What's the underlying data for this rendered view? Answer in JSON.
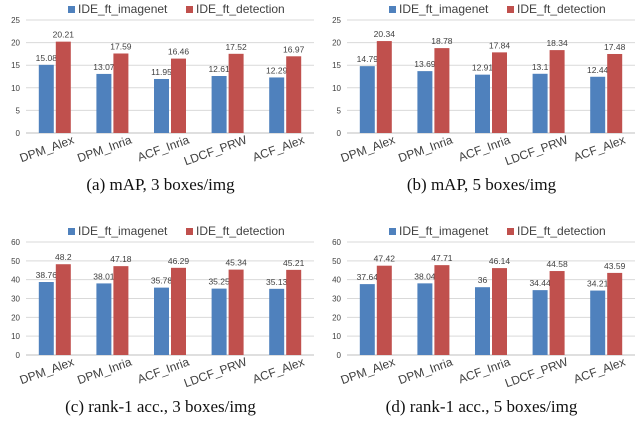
{
  "colors": {
    "imagenet": "#4f81bd",
    "detection": "#c0504d",
    "grid": "#d9d9d9",
    "text": "#404040"
  },
  "chart_data": [
    {
      "type": "bar",
      "caption": "(a)  mAP, 3 boxes/img",
      "categories": [
        "DPM_Alex",
        "DPM_Inria",
        "ACF_Inria",
        "LDCF_PRW",
        "ACF_Alex"
      ],
      "ylim": [
        0,
        25
      ],
      "yticks": [
        "0",
        "5",
        "10",
        "15",
        "20",
        "25"
      ],
      "series": [
        {
          "name": "IDE_ft_imagenet",
          "values": [
            15.08,
            13.07,
            11.95,
            12.61,
            12.29
          ],
          "labels": [
            "15.08",
            "13.07",
            "11.95",
            "12.61",
            "12.29"
          ]
        },
        {
          "name": "IDE_ft_detection",
          "values": [
            20.21,
            17.59,
            16.46,
            17.52,
            16.97
          ],
          "labels": [
            "20.21",
            "17.59",
            "16.46",
            "17.52",
            "16.97"
          ]
        }
      ]
    },
    {
      "type": "bar",
      "caption": "(b)  mAP, 5 boxes/img",
      "categories": [
        "DPM_Alex",
        "DPM_Inria",
        "ACF_Inria",
        "LDCF_PRW",
        "ACF_Alex"
      ],
      "ylim": [
        0,
        25
      ],
      "yticks": [
        "0",
        "5",
        "10",
        "15",
        "20",
        "25"
      ],
      "series": [
        {
          "name": "IDE_ft_imagenet",
          "values": [
            14.79,
            13.69,
            12.91,
            13.1,
            12.44
          ],
          "labels": [
            "14.79",
            "13.69",
            "12.91",
            "13.1",
            "12.44"
          ]
        },
        {
          "name": "IDE_ft_detection",
          "values": [
            20.34,
            18.78,
            17.84,
            18.34,
            17.48
          ],
          "labels": [
            "20.34",
            "18.78",
            "17.84",
            "18.34",
            "17.48"
          ]
        }
      ]
    },
    {
      "type": "bar",
      "caption": "(c)  rank-1 acc., 3 boxes/img",
      "categories": [
        "DPM_Alex",
        "DPM_Inria",
        "ACF_Inria",
        "LDCF_PRW",
        "ACF_Alex"
      ],
      "ylim": [
        0,
        60
      ],
      "yticks": [
        "0",
        "10",
        "20",
        "30",
        "40",
        "50",
        "60"
      ],
      "series": [
        {
          "name": "IDE_ft_imagenet",
          "values": [
            38.76,
            38.01,
            35.78,
            35.25,
            35.13
          ],
          "labels": [
            "38.76",
            "38.01",
            "35.78",
            "35.25",
            "35.13"
          ]
        },
        {
          "name": "IDE_ft_detection",
          "values": [
            48.2,
            47.18,
            46.29,
            45.34,
            45.21
          ],
          "labels": [
            "48.2",
            "47.18",
            "46.29",
            "45.34",
            "45.21"
          ]
        }
      ]
    },
    {
      "type": "bar",
      "caption": "(d)  rank-1 acc., 5 boxes/img",
      "categories": [
        "DPM_Alex",
        "DPM_Inria",
        "ACF_Inria",
        "LDCF_PRW",
        "ACF_Alex"
      ],
      "ylim": [
        0,
        60
      ],
      "yticks": [
        "0",
        "10",
        "20",
        "30",
        "40",
        "50",
        "60"
      ],
      "series": [
        {
          "name": "IDE_ft_imagenet",
          "values": [
            37.64,
            38.04,
            36,
            34.44,
            34.21
          ],
          "labels": [
            "37.64",
            "38.04",
            "36",
            "34.44",
            "34.21"
          ]
        },
        {
          "name": "IDE_ft_detection",
          "values": [
            47.42,
            47.71,
            46.14,
            44.58,
            43.59
          ],
          "labels": [
            "47.42",
            "47.71",
            "46.14",
            "44.58",
            "43.59"
          ]
        }
      ]
    }
  ]
}
